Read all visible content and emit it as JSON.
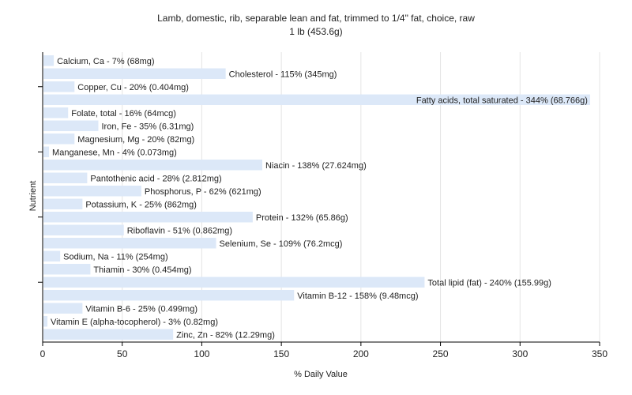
{
  "chart_data": {
    "type": "bar",
    "orientation": "horizontal",
    "title": "Lamb, domestic, rib, separable lean and fat, trimmed to 1/4\" fat, choice, raw",
    "subtitle": "1 lb (453.6g)",
    "xlabel": "% Daily Value",
    "ylabel": "Nutrient",
    "xlim": [
      0,
      350
    ],
    "xticks": [
      "0",
      "50",
      "100",
      "150",
      "200",
      "250",
      "300",
      "350"
    ],
    "grid": true,
    "bar_color": "#dce8f8",
    "categories": [
      "Calcium, Ca",
      "Cholesterol",
      "Copper, Cu",
      "Fatty acids, total saturated",
      "Folate, total",
      "Iron, Fe",
      "Magnesium, Mg",
      "Manganese, Mn",
      "Niacin",
      "Pantothenic acid",
      "Phosphorus, P",
      "Potassium, K",
      "Protein",
      "Riboflavin",
      "Selenium, Se",
      "Sodium, Na",
      "Thiamin",
      "Total lipid (fat)",
      "Vitamin B-12",
      "Vitamin B-6",
      "Vitamin E (alpha-tocopherol)",
      "Zinc, Zn"
    ],
    "values": [
      7,
      115,
      20,
      344,
      16,
      35,
      20,
      4,
      138,
      28,
      62,
      25,
      132,
      51,
      109,
      11,
      30,
      240,
      158,
      25,
      3,
      82
    ],
    "labels": [
      "Calcium, Ca - 7% (68mg)",
      "Cholesterol - 115% (345mg)",
      "Copper, Cu - 20% (0.404mg)",
      "Fatty acids, total saturated - 344% (68.766g)",
      "Folate, total - 16% (64mcg)",
      "Iron, Fe - 35% (6.31mg)",
      "Magnesium, Mg - 20% (82mg)",
      "Manganese, Mn - 4% (0.073mg)",
      "Niacin - 138% (27.624mg)",
      "Pantothenic acid - 28% (2.812mg)",
      "Phosphorus, P - 62% (621mg)",
      "Potassium, K - 25% (862mg)",
      "Protein - 132% (65.86g)",
      "Riboflavin - 51% (0.862mg)",
      "Selenium, Se - 109% (76.2mcg)",
      "Sodium, Na - 11% (254mg)",
      "Thiamin - 30% (0.454mg)",
      "Total lipid (fat) - 240% (155.99g)",
      "Vitamin B-12 - 158% (9.48mcg)",
      "Vitamin B-6 - 25% (0.499mg)",
      "Vitamin E (alpha-tocopherol) - 3% (0.82mg)",
      "Zinc, Zn - 82% (12.29mg)"
    ]
  }
}
